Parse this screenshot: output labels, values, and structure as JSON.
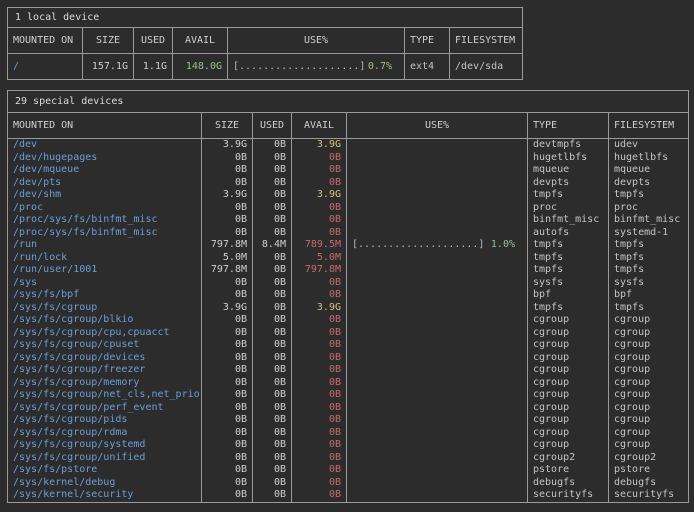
{
  "colors": {
    "bg": "#2c2c2c",
    "border": "#9a9a9a",
    "title_text": "#dcdcdc",
    "header_text": "#cfcfcf",
    "value_text": "#cfcfcf",
    "mount_text": "#6d9ed6",
    "type_text": "#c5c5c5",
    "bar_text": "#b8b8b8",
    "green": "#95c085",
    "yellow": "#d5c07b",
    "red": "#c96a6a"
  },
  "local_table": {
    "title": "1 local device",
    "headers": [
      "MOUNTED ON",
      "SIZE",
      "USED",
      "AVAIL",
      "USE%",
      "TYPE",
      "FILESYSTEM"
    ],
    "rows": [
      {
        "mount": "/",
        "size": "157.1G",
        "used": "1.1G",
        "avail": "148.0G",
        "avail_level": "lvl-green",
        "bar": "[....................]",
        "pct": "0.7%",
        "type": "ext4",
        "fs": "/dev/sda"
      }
    ]
  },
  "special_table": {
    "title": "29 special devices",
    "headers": [
      "MOUNTED ON",
      "SIZE",
      "USED",
      "AVAIL",
      "USE%",
      "TYPE",
      "FILESYSTEM"
    ],
    "rows": [
      {
        "mount": "/dev",
        "size": "3.9G",
        "used": "0B",
        "avail": "3.9G",
        "avail_level": "lvl-yellow",
        "bar": "",
        "pct": "",
        "type": "devtmpfs",
        "fs": "udev"
      },
      {
        "mount": "/dev/hugepages",
        "size": "0B",
        "used": "0B",
        "avail": "0B",
        "avail_level": "lvl-red",
        "bar": "",
        "pct": "",
        "type": "hugetlbfs",
        "fs": "hugetlbfs"
      },
      {
        "mount": "/dev/mqueue",
        "size": "0B",
        "used": "0B",
        "avail": "0B",
        "avail_level": "lvl-red",
        "bar": "",
        "pct": "",
        "type": "mqueue",
        "fs": "mqueue"
      },
      {
        "mount": "/dev/pts",
        "size": "0B",
        "used": "0B",
        "avail": "0B",
        "avail_level": "lvl-red",
        "bar": "",
        "pct": "",
        "type": "devpts",
        "fs": "devpts"
      },
      {
        "mount": "/dev/shm",
        "size": "3.9G",
        "used": "0B",
        "avail": "3.9G",
        "avail_level": "lvl-yellow",
        "bar": "",
        "pct": "",
        "type": "tmpfs",
        "fs": "tmpfs"
      },
      {
        "mount": "/proc",
        "size": "0B",
        "used": "0B",
        "avail": "0B",
        "avail_level": "lvl-red",
        "bar": "",
        "pct": "",
        "type": "proc",
        "fs": "proc"
      },
      {
        "mount": "/proc/sys/fs/binfmt_misc",
        "size": "0B",
        "used": "0B",
        "avail": "0B",
        "avail_level": "lvl-red",
        "bar": "",
        "pct": "",
        "type": "binfmt_misc",
        "fs": "binfmt_misc"
      },
      {
        "mount": "/proc/sys/fs/binfmt_misc",
        "size": "0B",
        "used": "0B",
        "avail": "0B",
        "avail_level": "lvl-red",
        "bar": "",
        "pct": "",
        "type": "autofs",
        "fs": "systemd-1"
      },
      {
        "mount": "/run",
        "size": "797.8M",
        "used": "8.4M",
        "avail": "789.5M",
        "avail_level": "lvl-red",
        "bar": "[....................]",
        "pct": "1.0%",
        "type": "tmpfs",
        "fs": "tmpfs"
      },
      {
        "mount": "/run/lock",
        "size": "5.0M",
        "used": "0B",
        "avail": "5.0M",
        "avail_level": "lvl-red",
        "bar": "",
        "pct": "",
        "type": "tmpfs",
        "fs": "tmpfs"
      },
      {
        "mount": "/run/user/1001",
        "size": "797.8M",
        "used": "0B",
        "avail": "797.8M",
        "avail_level": "lvl-red",
        "bar": "",
        "pct": "",
        "type": "tmpfs",
        "fs": "tmpfs"
      },
      {
        "mount": "/sys",
        "size": "0B",
        "used": "0B",
        "avail": "0B",
        "avail_level": "lvl-red",
        "bar": "",
        "pct": "",
        "type": "sysfs",
        "fs": "sysfs"
      },
      {
        "mount": "/sys/fs/bpf",
        "size": "0B",
        "used": "0B",
        "avail": "0B",
        "avail_level": "lvl-red",
        "bar": "",
        "pct": "",
        "type": "bpf",
        "fs": "bpf"
      },
      {
        "mount": "/sys/fs/cgroup",
        "size": "3.9G",
        "used": "0B",
        "avail": "3.9G",
        "avail_level": "lvl-yellow",
        "bar": "",
        "pct": "",
        "type": "tmpfs",
        "fs": "tmpfs"
      },
      {
        "mount": "/sys/fs/cgroup/blkio",
        "size": "0B",
        "used": "0B",
        "avail": "0B",
        "avail_level": "lvl-red",
        "bar": "",
        "pct": "",
        "type": "cgroup",
        "fs": "cgroup"
      },
      {
        "mount": "/sys/fs/cgroup/cpu,cpuacct",
        "size": "0B",
        "used": "0B",
        "avail": "0B",
        "avail_level": "lvl-red",
        "bar": "",
        "pct": "",
        "type": "cgroup",
        "fs": "cgroup"
      },
      {
        "mount": "/sys/fs/cgroup/cpuset",
        "size": "0B",
        "used": "0B",
        "avail": "0B",
        "avail_level": "lvl-red",
        "bar": "",
        "pct": "",
        "type": "cgroup",
        "fs": "cgroup"
      },
      {
        "mount": "/sys/fs/cgroup/devices",
        "size": "0B",
        "used": "0B",
        "avail": "0B",
        "avail_level": "lvl-red",
        "bar": "",
        "pct": "",
        "type": "cgroup",
        "fs": "cgroup"
      },
      {
        "mount": "/sys/fs/cgroup/freezer",
        "size": "0B",
        "used": "0B",
        "avail": "0B",
        "avail_level": "lvl-red",
        "bar": "",
        "pct": "",
        "type": "cgroup",
        "fs": "cgroup"
      },
      {
        "mount": "/sys/fs/cgroup/memory",
        "size": "0B",
        "used": "0B",
        "avail": "0B",
        "avail_level": "lvl-red",
        "bar": "",
        "pct": "",
        "type": "cgroup",
        "fs": "cgroup"
      },
      {
        "mount": "/sys/fs/cgroup/net_cls,net_prio",
        "size": "0B",
        "used": "0B",
        "avail": "0B",
        "avail_level": "lvl-red",
        "bar": "",
        "pct": "",
        "type": "cgroup",
        "fs": "cgroup"
      },
      {
        "mount": "/sys/fs/cgroup/perf_event",
        "size": "0B",
        "used": "0B",
        "avail": "0B",
        "avail_level": "lvl-red",
        "bar": "",
        "pct": "",
        "type": "cgroup",
        "fs": "cgroup"
      },
      {
        "mount": "/sys/fs/cgroup/pids",
        "size": "0B",
        "used": "0B",
        "avail": "0B",
        "avail_level": "lvl-red",
        "bar": "",
        "pct": "",
        "type": "cgroup",
        "fs": "cgroup"
      },
      {
        "mount": "/sys/fs/cgroup/rdma",
        "size": "0B",
        "used": "0B",
        "avail": "0B",
        "avail_level": "lvl-red",
        "bar": "",
        "pct": "",
        "type": "cgroup",
        "fs": "cgroup"
      },
      {
        "mount": "/sys/fs/cgroup/systemd",
        "size": "0B",
        "used": "0B",
        "avail": "0B",
        "avail_level": "lvl-red",
        "bar": "",
        "pct": "",
        "type": "cgroup",
        "fs": "cgroup"
      },
      {
        "mount": "/sys/fs/cgroup/unified",
        "size": "0B",
        "used": "0B",
        "avail": "0B",
        "avail_level": "lvl-red",
        "bar": "",
        "pct": "",
        "type": "cgroup2",
        "fs": "cgroup2"
      },
      {
        "mount": "/sys/fs/pstore",
        "size": "0B",
        "used": "0B",
        "avail": "0B",
        "avail_level": "lvl-red",
        "bar": "",
        "pct": "",
        "type": "pstore",
        "fs": "pstore"
      },
      {
        "mount": "/sys/kernel/debug",
        "size": "0B",
        "used": "0B",
        "avail": "0B",
        "avail_level": "lvl-red",
        "bar": "",
        "pct": "",
        "type": "debugfs",
        "fs": "debugfs"
      },
      {
        "mount": "/sys/kernel/security",
        "size": "0B",
        "used": "0B",
        "avail": "0B",
        "avail_level": "lvl-red",
        "bar": "",
        "pct": "",
        "type": "securityfs",
        "fs": "securityfs"
      }
    ]
  }
}
